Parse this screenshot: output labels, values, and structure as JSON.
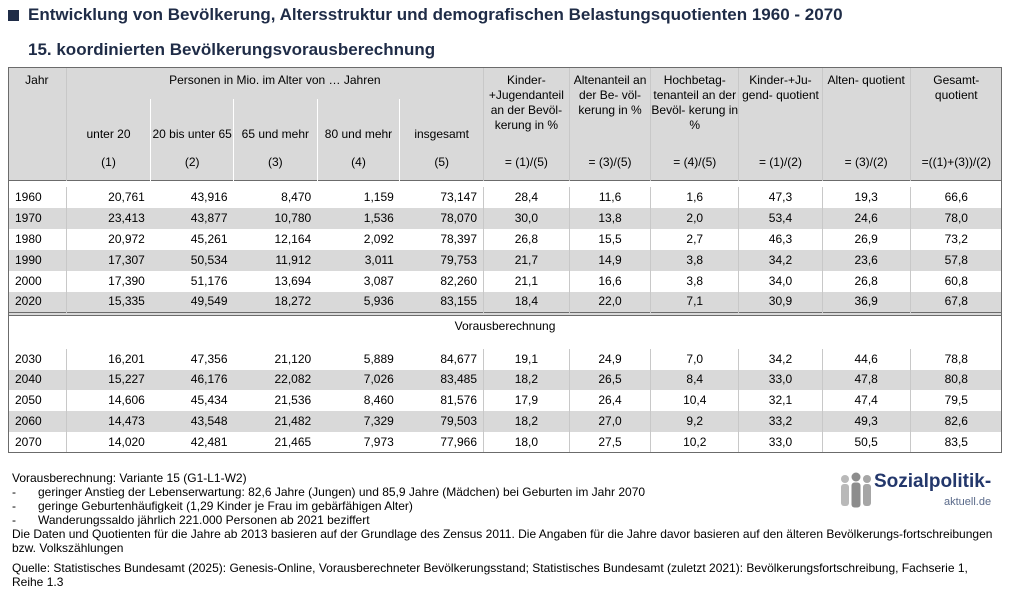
{
  "title": "Entwicklung von Bevölkerung, Altersstruktur und demografischen Belastungsquotienten 1960 - 2070",
  "subtitle": "15. koordinierten Bevölkerungsvorausberechnung",
  "table": {
    "header": {
      "jahr": "Jahr",
      "personen": "Personen in Mio. im Alter von … Jahren",
      "col_under20": "unter 20",
      "col_20_65": "20 bis unter 65",
      "col_65": "65 und mehr",
      "col_80": "80 und mehr",
      "col_total": "insgesamt",
      "col_kinderanteil": "Kinder- +Jugendanteil an der Bevöl- kerung in %",
      "col_altenanteil": "Altenanteil an der Be- völ- kerung in %",
      "col_hochbetagt": "Hochbetag- tenanteil an der Bevöl- kerung in %",
      "col_kinderquot": "Kinder-+Ju- gend- quotient",
      "col_altenquot": "Alten- quotient",
      "col_gesamtquot": "Gesamt- quotient",
      "num_1": "(1)",
      "num_2": "(2)",
      "num_3": "(3)",
      "num_4": "(4)",
      "num_5": "(5)",
      "f_kinderanteil": "= (1)/(5)",
      "f_altenanteil": "= (3)/(5)",
      "f_hochbetagt": "= (4)/(5)",
      "f_kinderquot": "= (1)/(2)",
      "f_altenquot": "= (3)/(2)",
      "f_gesamtquot": "=((1)+(3))/(2)"
    },
    "historical": [
      [
        "1960",
        "20,761",
        "43,916",
        "8,470",
        "1,159",
        "73,147",
        "28,4",
        "11,6",
        "1,6",
        "47,3",
        "19,3",
        "66,6"
      ],
      [
        "1970",
        "23,413",
        "43,877",
        "10,780",
        "1,536",
        "78,070",
        "30,0",
        "13,8",
        "2,0",
        "53,4",
        "24,6",
        "78,0"
      ],
      [
        "1980",
        "20,972",
        "45,261",
        "12,164",
        "2,092",
        "78,397",
        "26,8",
        "15,5",
        "2,7",
        "46,3",
        "26,9",
        "73,2"
      ],
      [
        "1990",
        "17,307",
        "50,534",
        "11,912",
        "3,011",
        "79,753",
        "21,7",
        "14,9",
        "3,8",
        "34,2",
        "23,6",
        "57,8"
      ],
      [
        "2000",
        "17,390",
        "51,176",
        "13,694",
        "3,087",
        "82,260",
        "21,1",
        "16,6",
        "3,8",
        "34,0",
        "26,8",
        "60,8"
      ],
      [
        "2020",
        "15,335",
        "49,549",
        "18,272",
        "5,936",
        "83,155",
        "18,4",
        "22,0",
        "7,1",
        "30,9",
        "36,9",
        "67,8"
      ]
    ],
    "projection_label": "Vorausberechnung",
    "projection": [
      [
        "2030",
        "16,201",
        "47,356",
        "21,120",
        "5,889",
        "84,677",
        "19,1",
        "24,9",
        "7,0",
        "34,2",
        "44,6",
        "78,8"
      ],
      [
        "2040",
        "15,227",
        "46,176",
        "22,082",
        "7,026",
        "83,485",
        "18,2",
        "26,5",
        "8,4",
        "33,0",
        "47,8",
        "80,8"
      ],
      [
        "2050",
        "14,606",
        "45,434",
        "21,536",
        "8,460",
        "81,576",
        "17,9",
        "26,4",
        "10,4",
        "32,1",
        "47,4",
        "79,5"
      ],
      [
        "2060",
        "14,473",
        "43,548",
        "21,482",
        "7,329",
        "79,503",
        "18,2",
        "27,0",
        "9,2",
        "33,2",
        "49,3",
        "82,6"
      ],
      [
        "2070",
        "14,020",
        "42,481",
        "21,465",
        "7,973",
        "77,966",
        "18,0",
        "27,5",
        "10,2",
        "33,0",
        "50,5",
        "83,5"
      ]
    ]
  },
  "notes": {
    "variant": "Vorausberechnung: Variante 15 (G1-L1-W2)",
    "bullet_dash": "-",
    "bullets": [
      "geringer Anstieg der Lebenserwartung: 82,6 Jahre (Jungen) und 85,9 Jahre (Mädchen) bei Geburten im Jahr 2070",
      "geringe Geburtenhäufigkeit (1,29 Kinder je Frau im gebärfähigen Alter)",
      "Wanderungssaldo jährlich 221.000 Personen ab 2021 beziffert"
    ],
    "zensus": "Die Daten und Quotienten für die Jahre ab 2013 basieren auf der Grundlage des Zensus 2011. Die Angaben für die Jahre davor basieren auf den älteren Bevölkerungs-fortschreibungen bzw. Volkszählungen",
    "source": "Quelle: Statistisches Bundesamt (2025): Genesis-Online, Vorausberechneter Bevölkerungsstand; Statistisches Bundesamt (zuletzt 2021): Bevölkerungsfortschreibung, Fachserie 1, Reihe 1.3"
  },
  "logo": {
    "main": "Sozialpolitik-",
    "sub": "aktuell.de"
  },
  "colors": {
    "title": "#1f2c47",
    "header_bg": "#d9d9d9",
    "logo_blue": "#23376b"
  }
}
